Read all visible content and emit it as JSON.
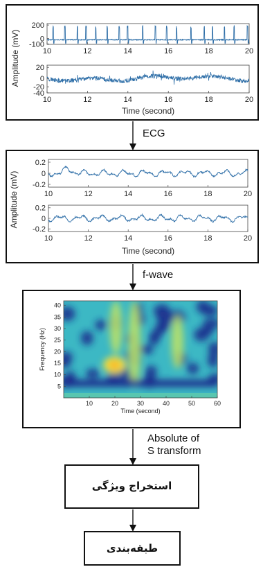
{
  "panels": {
    "ecg": {
      "ylabel": "Amplitude (mV)",
      "xlabel": "Time (second)",
      "subplots": [
        {
          "yticks": [
            "200",
            "0",
            "-100"
          ],
          "xticks": [
            "10",
            "12",
            "14",
            "16",
            "18",
            "20"
          ]
        },
        {
          "yticks": [
            "20",
            "0",
            "-20",
            "-40"
          ],
          "xticks": [
            "10",
            "12",
            "14",
            "16",
            "18",
            "20"
          ]
        }
      ]
    },
    "fwave": {
      "ylabel": "Amplitude (mV)",
      "xlabel": "Time (second)",
      "subplots": [
        {
          "yticks": [
            "0.2",
            "0",
            "-0.2"
          ],
          "xticks": [
            "10",
            "12",
            "14",
            "16",
            "18",
            "20"
          ]
        },
        {
          "yticks": [
            "0.2",
            "0",
            "-0.2"
          ],
          "xticks": [
            "10",
            "12",
            "14",
            "16",
            "18",
            "20"
          ]
        }
      ]
    },
    "spectrogram": {
      "ylabel": "Frequency (Hz)",
      "xlabel": "Time (second)",
      "yticks": [
        "40",
        "35",
        "30",
        "25",
        "20",
        "15",
        "10",
        "5"
      ],
      "xticks": [
        "10",
        "20",
        "30",
        "40",
        "50",
        "60"
      ]
    }
  },
  "arrows": {
    "ecg_label": "ECG",
    "fwave_label": "f-wave",
    "transform_line1": "Absolute of",
    "transform_line2": "S transform"
  },
  "boxes": {
    "feature_extraction": "استخراج ویژگی",
    "classification": "طبقه‌بندی"
  },
  "colors": {
    "signal": "#2f6fa8",
    "border": "#111111",
    "heat_low": "#1a2a8c",
    "heat_mid": "#3cb8c4",
    "heat_high": "#f7e23a"
  }
}
